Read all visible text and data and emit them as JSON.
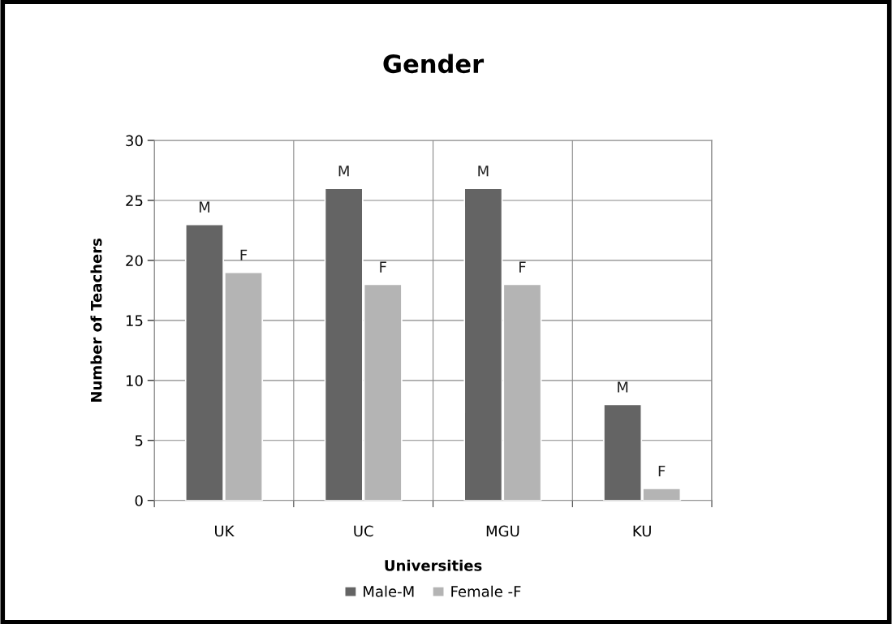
{
  "chart_data": {
    "type": "bar",
    "title": "Gender",
    "xlabel": "Universities",
    "ylabel": "Number of Teachers",
    "categories": [
      "UK",
      "UC",
      "MGU",
      "KU"
    ],
    "series": [
      {
        "name": "Male-M",
        "color": "#646464",
        "values": [
          23,
          26,
          26,
          8
        ],
        "value_labels": [
          "M",
          "M",
          "M",
          "M"
        ]
      },
      {
        "name": "Female -F",
        "color": "#b4b4b4",
        "values": [
          19,
          18,
          18,
          1
        ],
        "value_labels": [
          "F",
          "F",
          "F",
          "F"
        ]
      }
    ],
    "ylim": [
      0,
      30
    ],
    "yticks": [
      0,
      5,
      10,
      15,
      20,
      25,
      30
    ],
    "grid": true,
    "legend": "bottom"
  }
}
